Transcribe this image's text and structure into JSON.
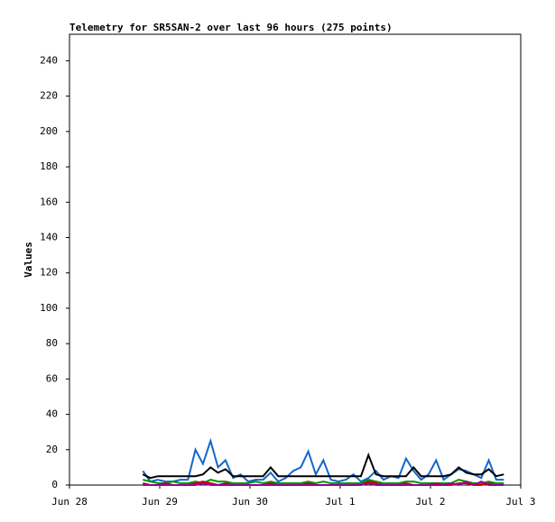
{
  "chart_data": {
    "type": "line",
    "title": "Telemetry for SR5SAN-2 over last 96 hours (275 points)",
    "ylabel": "Values",
    "x": [
      19.5,
      21.5,
      23.5,
      25.5,
      27.5,
      29.5,
      31.5,
      33.5,
      35.5,
      37.5,
      39.5,
      41.5,
      43.5,
      45.5,
      47.5,
      49.5,
      51.5,
      53.5,
      55.5,
      57.5,
      59.5,
      61.5,
      63.5,
      65.5,
      67.5,
      69.5,
      71.5,
      73.5,
      75.5,
      77.5,
      79.5,
      81.5,
      83.5,
      85.5,
      87.5,
      89.5,
      91.5,
      93.5,
      95.5,
      97.5,
      99.5,
      101.5,
      103.5,
      105.5,
      107.5,
      109.5,
      111.5,
      113.5,
      115.5
    ],
    "xlim": [
      0,
      120
    ],
    "xticks": [
      {
        "value": 0,
        "label": "Jun 28"
      },
      {
        "value": 24,
        "label": "Jun 29"
      },
      {
        "value": 48,
        "label": "Jun 30"
      },
      {
        "value": 72,
        "label": "Jul 1"
      },
      {
        "value": 96,
        "label": "Jul 2"
      },
      {
        "value": 120,
        "label": "Jul 3"
      }
    ],
    "ylim": [
      0,
      255
    ],
    "yticks": [
      0,
      20,
      40,
      60,
      80,
      100,
      120,
      140,
      160,
      180,
      200,
      220,
      240
    ],
    "series": [
      {
        "color": "#1466cc",
        "values": [
          8,
          2,
          3,
          2,
          2,
          3,
          3,
          20,
          12,
          25,
          10,
          14,
          4,
          6,
          2,
          3,
          3,
          7,
          2,
          4,
          8,
          10,
          19,
          6,
          14,
          3,
          2,
          3,
          6,
          2,
          4,
          8,
          3,
          5,
          4,
          15,
          8,
          3,
          6,
          14,
          3,
          6,
          9,
          8,
          6,
          4,
          14,
          3,
          3
        ]
      },
      {
        "color": "#009900",
        "values": [
          3,
          2,
          1,
          1,
          2,
          1,
          1,
          2,
          1,
          3,
          2,
          2,
          1,
          1,
          1,
          2,
          1,
          2,
          1,
          1,
          1,
          1,
          2,
          1,
          2,
          1,
          1,
          1,
          1,
          1,
          3,
          2,
          1,
          1,
          1,
          2,
          2,
          1,
          1,
          1,
          1,
          1,
          3,
          2,
          1,
          1,
          2,
          1,
          1
        ]
      },
      {
        "color": "#cc0000",
        "values": [
          1,
          0,
          0,
          1,
          0,
          0,
          0,
          1,
          2,
          1,
          0,
          1,
          0,
          0,
          0,
          0,
          0,
          1,
          0,
          0,
          0,
          0,
          1,
          0,
          0,
          0,
          0,
          0,
          0,
          0,
          2,
          1,
          0,
          0,
          0,
          1,
          0,
          0,
          0,
          0,
          0,
          0,
          1,
          1,
          0,
          0,
          1,
          0,
          0
        ]
      },
      {
        "color": "#990099",
        "values": [
          0,
          0,
          0,
          0,
          0,
          0,
          0,
          0,
          1,
          0,
          0,
          0,
          0,
          0,
          0,
          0,
          0,
          0,
          0,
          0,
          0,
          0,
          0,
          0,
          0,
          0,
          0,
          0,
          0,
          0,
          1,
          0,
          0,
          0,
          0,
          0,
          0,
          0,
          0,
          1,
          0,
          1,
          0,
          2,
          0,
          2,
          0,
          0,
          0
        ]
      },
      {
        "color": "#000000",
        "values": [
          6,
          4,
          5,
          5,
          5,
          5,
          5,
          5,
          6,
          10,
          7,
          9,
          5,
          5,
          5,
          5,
          5,
          10,
          5,
          5,
          5,
          5,
          5,
          5,
          5,
          5,
          5,
          5,
          5,
          5,
          17,
          6,
          5,
          5,
          5,
          5,
          10,
          5,
          5,
          5,
          5,
          6,
          10,
          7,
          6,
          6,
          9,
          5,
          6
        ]
      }
    ]
  }
}
